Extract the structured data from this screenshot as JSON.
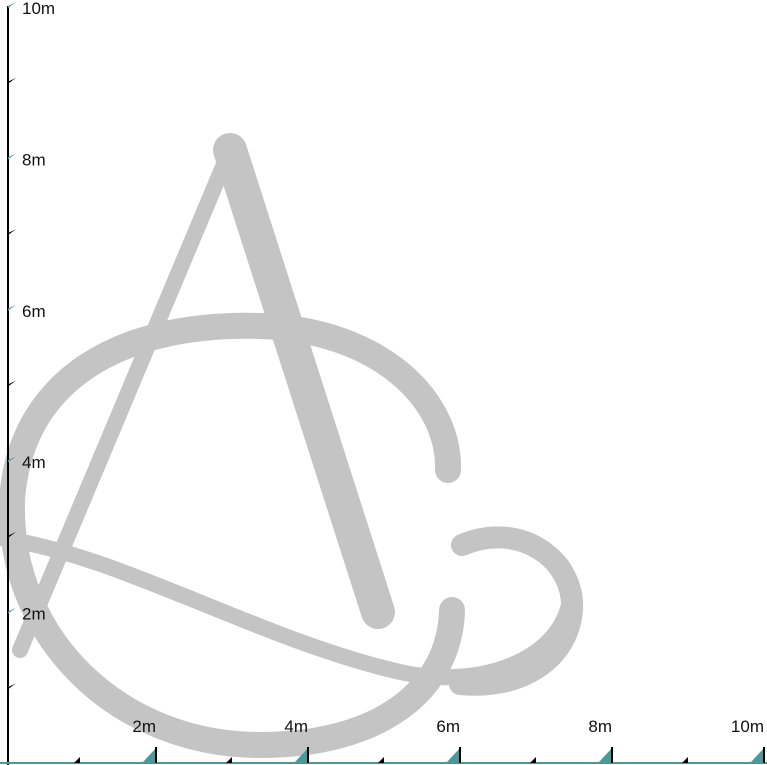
{
  "colors": {
    "background": "#ffffff",
    "axis": "#000000",
    "tick_accent": "#4a9a9a",
    "logo": "#c4c4c4"
  },
  "x_axis": {
    "max": 10,
    "labels": [
      "2m",
      "4m",
      "6m",
      "8m",
      "10m"
    ]
  },
  "y_axis": {
    "max": 10,
    "labels": [
      "2m",
      "4m",
      "6m",
      "8m",
      "10m"
    ]
  },
  "logo": {
    "icon": "monogram-a-c-logo"
  }
}
